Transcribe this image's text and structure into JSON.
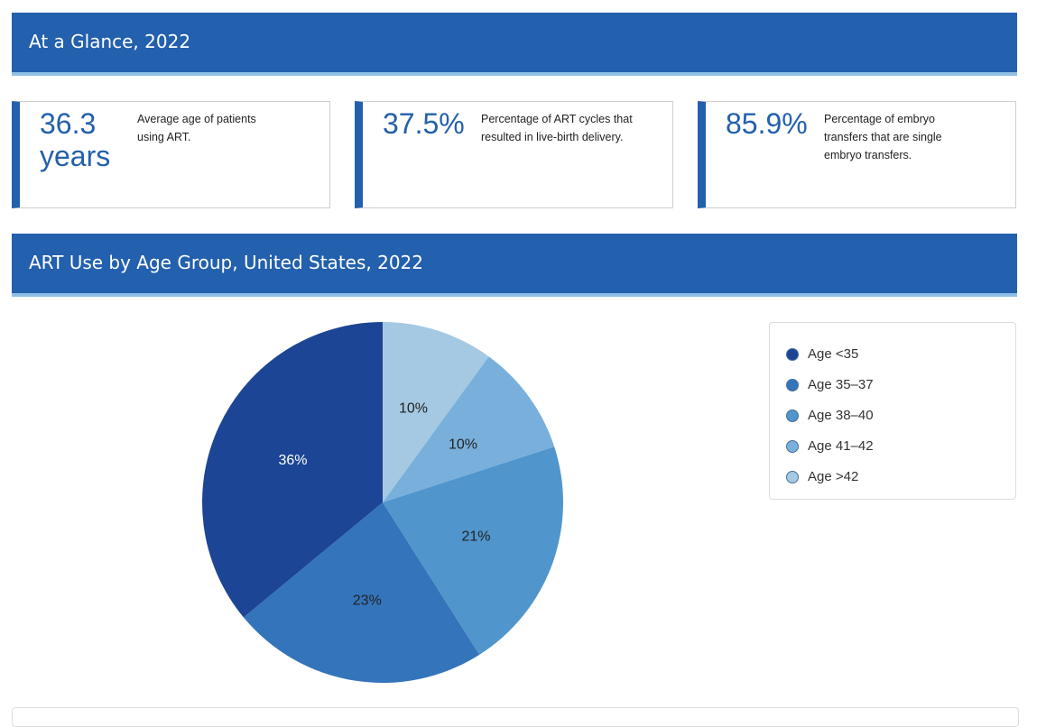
{
  "glance": {
    "title": "At a Glance, 2022",
    "cards": [
      {
        "value": "36.3 years",
        "desc": "Average age of patients using ART."
      },
      {
        "value": "37.5%",
        "desc": "Percentage of ART cycles that resulted in live-birth delivery."
      },
      {
        "value": "85.9%",
        "desc": "Percentage of embryo transfers that are single embryo transfers."
      }
    ]
  },
  "chart_section": {
    "title": "ART Use by Age Group, United States, 2022"
  },
  "chart_data": {
    "type": "pie",
    "title": "ART Use by Age Group, United States, 2022",
    "categories": [
      "Age <35",
      "Age 35–37",
      "Age 38–40",
      "Age 41–42",
      "Age >42"
    ],
    "values": [
      36,
      23,
      21,
      10,
      10
    ],
    "labels": [
      "36%",
      "23%",
      "21%",
      "10%",
      "10%"
    ],
    "colors": [
      "#1c4595",
      "#3474bb",
      "#5095cc",
      "#79b0db",
      "#a5c9e3"
    ],
    "legend": "right"
  }
}
